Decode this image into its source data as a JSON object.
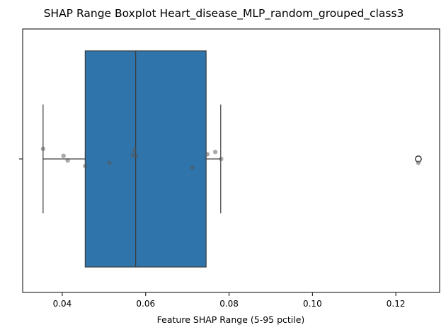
{
  "chart_data": {
    "type": "boxplot",
    "title": "SHAP Range Boxplot Heart_disease_MLP_random_grouped_class3",
    "xlabel": "Feature SHAP Range (5-95 pctile)",
    "ylabel": "",
    "xlim": [
      0.0305,
      0.1305
    ],
    "xticks": [
      0.04,
      0.06,
      0.08,
      0.1,
      0.12
    ],
    "xtick_labels": [
      "0.04",
      "0.06",
      "0.08",
      "0.10",
      "0.12"
    ],
    "ytick_labels": [
      ""
    ],
    "grid": false,
    "box": {
      "whisker_low": 0.0354,
      "q1": 0.0455,
      "median": 0.0576,
      "q3": 0.0745,
      "whisker_high": 0.078,
      "outliers": [
        0.1254
      ]
    },
    "points": [
      {
        "x": 0.0354,
        "jitter": -0.13
      },
      {
        "x": 0.0403,
        "jitter": -0.04
      },
      {
        "x": 0.0413,
        "jitter": 0.02
      },
      {
        "x": 0.0455,
        "jitter": 0.09
      },
      {
        "x": 0.0513,
        "jitter": 0.05
      },
      {
        "x": 0.0569,
        "jitter": -0.05
      },
      {
        "x": 0.0573,
        "jitter": -0.11
      },
      {
        "x": 0.0577,
        "jitter": -0.04
      },
      {
        "x": 0.0712,
        "jitter": 0.11
      },
      {
        "x": 0.0748,
        "jitter": -0.06
      },
      {
        "x": 0.0767,
        "jitter": -0.09
      },
      {
        "x": 0.0781,
        "jitter": 0.0
      },
      {
        "x": 0.1254,
        "jitter": 0.05
      }
    ],
    "colors": {
      "box_fill": "#2f74ab",
      "box_edge": "#3d3d3d",
      "point": "#555555"
    }
  }
}
